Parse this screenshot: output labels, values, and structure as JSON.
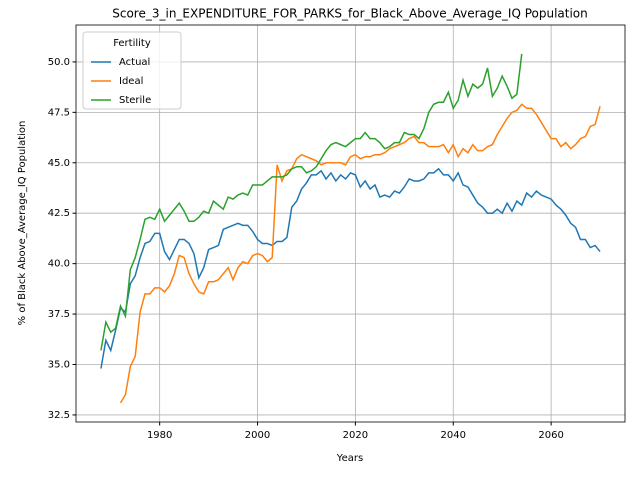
{
  "chart_data": {
    "type": "line",
    "title": "Score_3_in_EXPENDITURE_FOR_PARKS_for_Black_Above_Average_IQ Population",
    "xlabel": "Years",
    "ylabel": "% of Black Above_Average_IQ Population",
    "legend_title": "Fertility",
    "legend_loc": "upper-left",
    "grid": true,
    "xlim": [
      1962.9,
      2075.1
    ],
    "xticks": [
      1980,
      2000,
      2020,
      2040,
      2060
    ],
    "ylim": [
      32.15,
      51.83
    ],
    "yticks": [
      32.5,
      {
        "value": 35,
        "label": "35.0"
      },
      37.5,
      {
        "value": 40,
        "label": "40.0"
      },
      42.5,
      {
        "value": 45,
        "label": "45.0"
      },
      47.5,
      {
        "value": 50,
        "label": "50.0"
      }
    ],
    "x": [
      1968,
      1969,
      1970,
      1971,
      1972,
      1973,
      1974,
      1975,
      1976,
      1977,
      1978,
      1979,
      1980,
      1981,
      1982,
      1983,
      1984,
      1985,
      1986,
      1987,
      1988,
      1989,
      1990,
      1991,
      1992,
      1993,
      1994,
      1995,
      1996,
      1997,
      1998,
      1999,
      2000,
      2001,
      2002,
      2003,
      2004,
      2005,
      2006,
      2007,
      2008,
      2009,
      2010,
      2011,
      2012,
      2013,
      2014,
      2015,
      2016,
      2017,
      2018,
      2019,
      2020,
      2021,
      2022,
      2023,
      2024,
      2025,
      2026,
      2027,
      2028,
      2029,
      2030,
      2031,
      2032,
      2033,
      2034,
      2035,
      2036,
      2037,
      2038,
      2039,
      2040,
      2041,
      2042,
      2043,
      2044,
      2045,
      2046,
      2047,
      2048,
      2049,
      2050,
      2051,
      2052,
      2053,
      2054,
      2055,
      2056,
      2057,
      2058,
      2059,
      2060,
      2061,
      2062,
      2063,
      2064,
      2065,
      2066,
      2067,
      2068,
      2069,
      2070
    ],
    "series": [
      {
        "name": "Actual",
        "color": "#1f77b4",
        "values": [
          34.8,
          36.2,
          35.7,
          36.7,
          37.8,
          37.6,
          39.0,
          39.4,
          40.3,
          41.0,
          41.1,
          41.5,
          41.5,
          40.6,
          40.2,
          40.7,
          41.2,
          41.2,
          41.0,
          40.5,
          39.3,
          39.8,
          40.7,
          40.8,
          40.9,
          41.7,
          41.8,
          41.9,
          42.0,
          41.9,
          41.9,
          41.6,
          41.2,
          41.0,
          41.0,
          40.9,
          41.1,
          41.1,
          41.3,
          42.8,
          43.1,
          43.7,
          44.0,
          44.4,
          44.4,
          44.6,
          44.2,
          44.5,
          44.1,
          44.4,
          44.2,
          44.5,
          44.4,
          43.8,
          44.1,
          43.7,
          43.9,
          43.3,
          43.4,
          43.3,
          43.6,
          43.5,
          43.8,
          44.2,
          44.1,
          44.1,
          44.2,
          44.5,
          44.5,
          44.7,
          44.4,
          44.4,
          44.1,
          44.5,
          43.9,
          43.8,
          43.4,
          43.0,
          42.8,
          42.5,
          42.5,
          42.7,
          42.5,
          43.0,
          42.6,
          43.1,
          42.9,
          43.5,
          43.3,
          43.6,
          43.4,
          43.3,
          43.2,
          42.9,
          42.7,
          42.4,
          42.0,
          41.8,
          41.2,
          41.2,
          40.8,
          40.9,
          40.6
        ]
      },
      {
        "name": "Ideal",
        "color": "#ff7f0e",
        "values": [
          null,
          null,
          null,
          null,
          33.1,
          33.5,
          34.9,
          35.4,
          37.6,
          38.5,
          38.5,
          38.8,
          38.8,
          38.6,
          38.9,
          39.5,
          40.4,
          40.3,
          39.5,
          39.0,
          38.6,
          38.5,
          39.1,
          39.1,
          39.2,
          39.5,
          39.8,
          39.2,
          39.8,
          40.1,
          40.0,
          40.4,
          40.5,
          40.4,
          40.1,
          40.3,
          44.9,
          44.1,
          44.6,
          44.7,
          45.2,
          45.4,
          45.3,
          45.2,
          45.1,
          44.9,
          45.0,
          45.0,
          45.0,
          45.0,
          44.9,
          45.3,
          45.4,
          45.2,
          45.3,
          45.3,
          45.4,
          45.4,
          45.5,
          45.7,
          45.8,
          45.9,
          46.0,
          46.2,
          46.3,
          46.0,
          46.0,
          45.8,
          45.8,
          45.8,
          45.9,
          45.5,
          45.9,
          45.3,
          45.7,
          45.5,
          45.9,
          45.6,
          45.6,
          45.8,
          45.9,
          46.4,
          46.8,
          47.2,
          47.5,
          47.6,
          47.9,
          47.7,
          47.7,
          47.4,
          47.0,
          46.6,
          46.2,
          46.2,
          45.8,
          46.0,
          45.7,
          45.9,
          46.2,
          46.3,
          46.8,
          46.9,
          47.8
        ]
      },
      {
        "name": "Sterile",
        "color": "#2ca02c",
        "values": [
          35.7,
          37.1,
          36.6,
          36.8,
          37.9,
          37.4,
          39.7,
          40.3,
          41.2,
          42.2,
          42.3,
          42.2,
          42.7,
          42.1,
          42.4,
          42.7,
          43.0,
          42.6,
          42.1,
          42.1,
          42.3,
          42.6,
          42.5,
          43.1,
          42.9,
          42.7,
          43.3,
          43.2,
          43.4,
          43.5,
          43.4,
          43.9,
          43.9,
          43.9,
          44.1,
          44.3,
          44.3,
          44.3,
          44.4,
          44.7,
          44.8,
          44.8,
          44.5,
          44.6,
          44.8,
          45.2,
          45.6,
          45.9,
          46.0,
          45.9,
          45.8,
          46.0,
          46.2,
          46.2,
          46.5,
          46.2,
          46.2,
          46.0,
          45.7,
          45.8,
          46.0,
          46.0,
          46.5,
          46.4,
          46.4,
          46.2,
          46.7,
          47.5,
          47.9,
          48.0,
          48.0,
          48.5,
          47.7,
          48.1,
          49.1,
          48.3,
          48.9,
          48.7,
          48.9,
          49.7,
          48.3,
          48.7,
          49.3,
          48.8,
          48.2,
          48.4,
          50.4,
          null,
          null,
          null,
          null,
          null,
          null,
          null,
          null,
          null,
          null,
          null,
          null,
          null,
          null,
          null,
          null
        ]
      }
    ]
  }
}
